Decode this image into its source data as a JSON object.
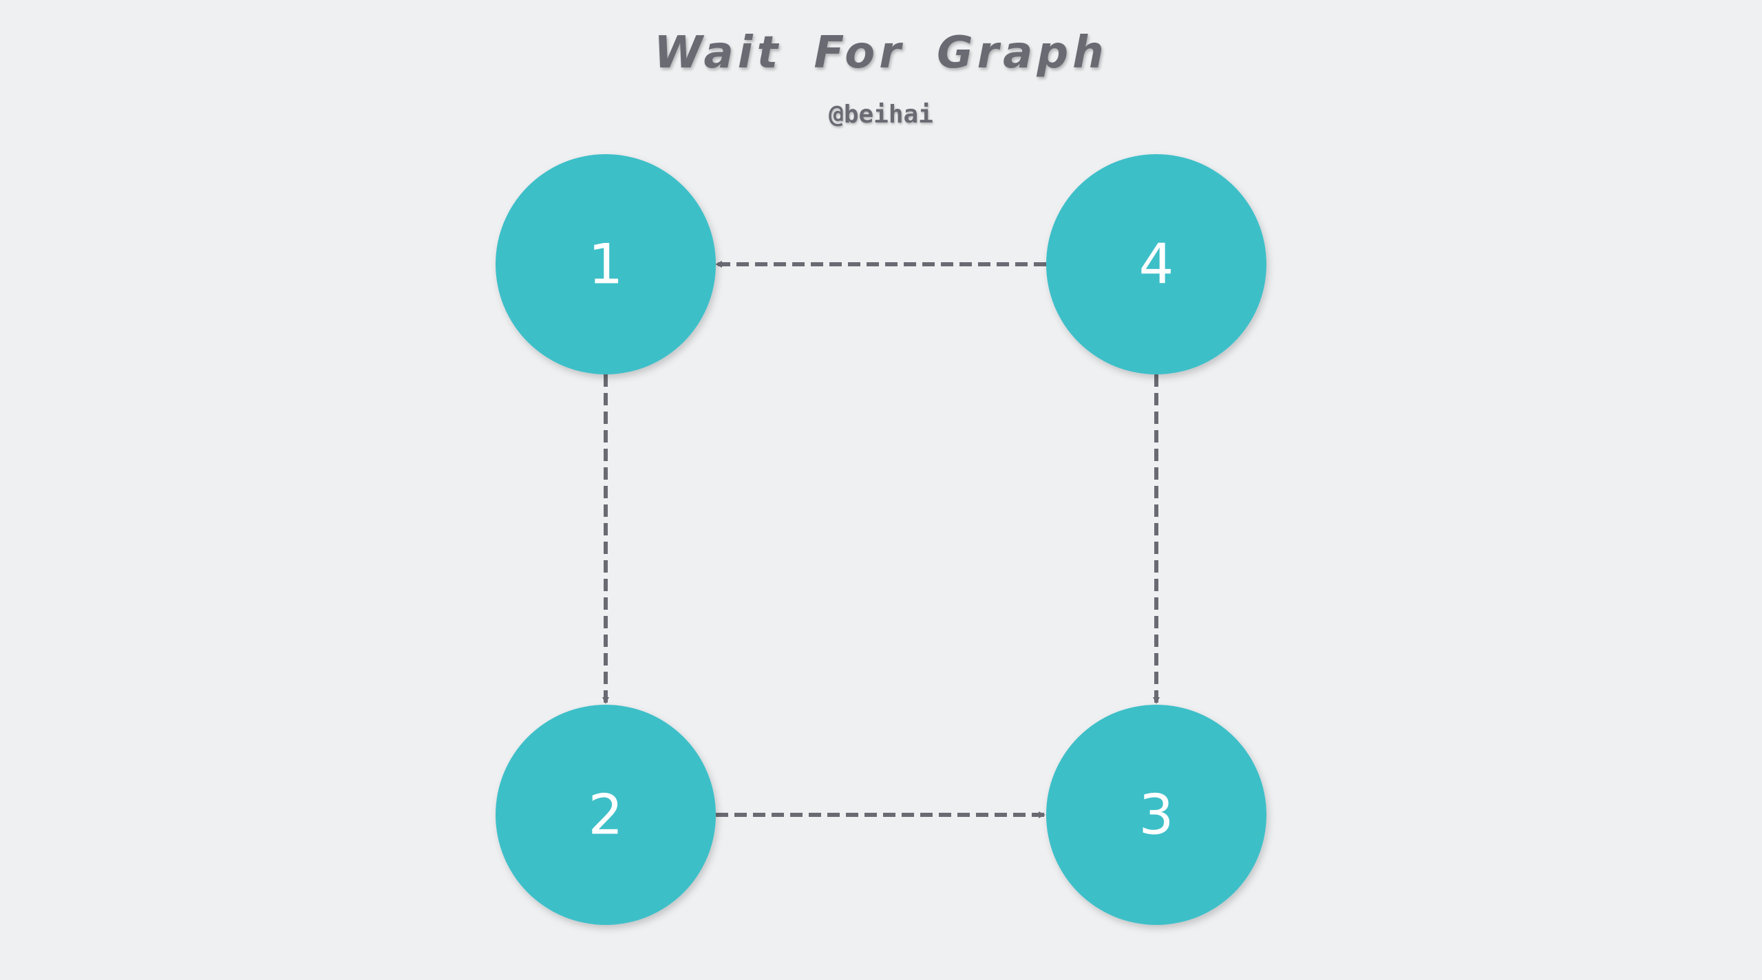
{
  "title": "Wait For Graph",
  "subtitle": "@beihai",
  "colors": {
    "background": "#eff0f2",
    "node_fill": "#3ebfc8",
    "edge": "#6a6a73",
    "text": "#6a6a73",
    "node_text": "#ffffff"
  },
  "nodes": [
    {
      "id": "1",
      "label": "1"
    },
    {
      "id": "4",
      "label": "4"
    },
    {
      "id": "2",
      "label": "2"
    },
    {
      "id": "3",
      "label": "3"
    }
  ],
  "edges": [
    {
      "from": "4",
      "to": "1",
      "style": "dashed"
    },
    {
      "from": "1",
      "to": "2",
      "style": "dashed"
    },
    {
      "from": "4",
      "to": "3",
      "style": "dashed"
    },
    {
      "from": "2",
      "to": "3",
      "style": "dashed"
    }
  ]
}
